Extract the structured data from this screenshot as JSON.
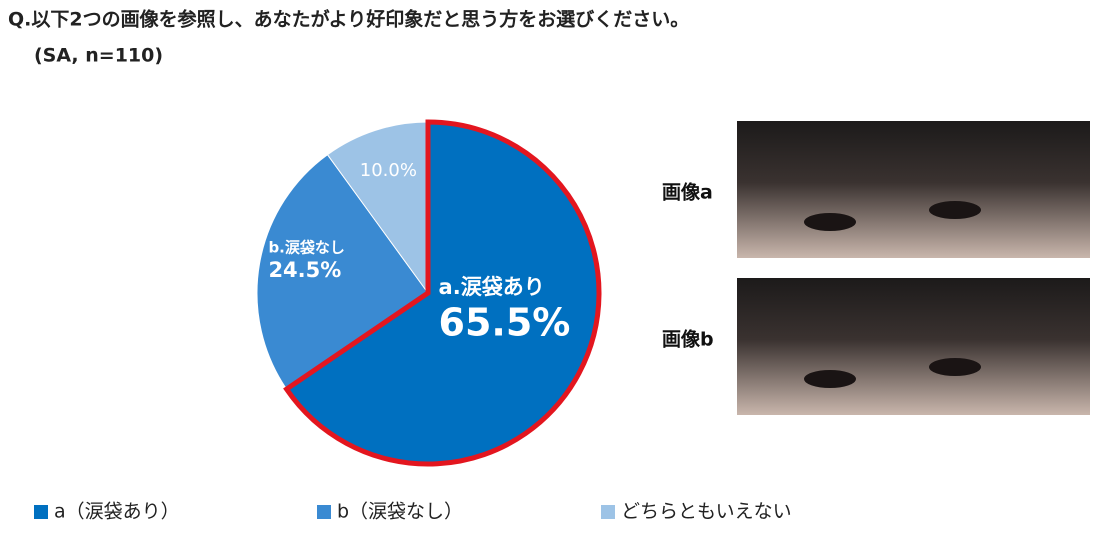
{
  "chart_data": {
    "type": "pie",
    "title": "Q.以下2つの画像を参照し、あなたがより好印象だと思う方をお選びください。",
    "subtitle": "(SA, n=110)",
    "categories": [
      "a（涙袋あり）",
      "b（涙袋なし）",
      "どちらともいえない"
    ],
    "label_names": [
      "a.涙袋あり",
      "b.涙袋なし",
      null
    ],
    "values": [
      65.5,
      24.5,
      10.0
    ],
    "value_labels": [
      "65.5%",
      "24.5%",
      "10.0%"
    ],
    "colors": [
      "#0070c0",
      "#3a8ad2",
      "#9dc3e6"
    ],
    "outline": {
      "index": 0,
      "color": "#e3161f"
    },
    "legend": "bottom"
  },
  "images": [
    "画像a",
    "画像b"
  ]
}
